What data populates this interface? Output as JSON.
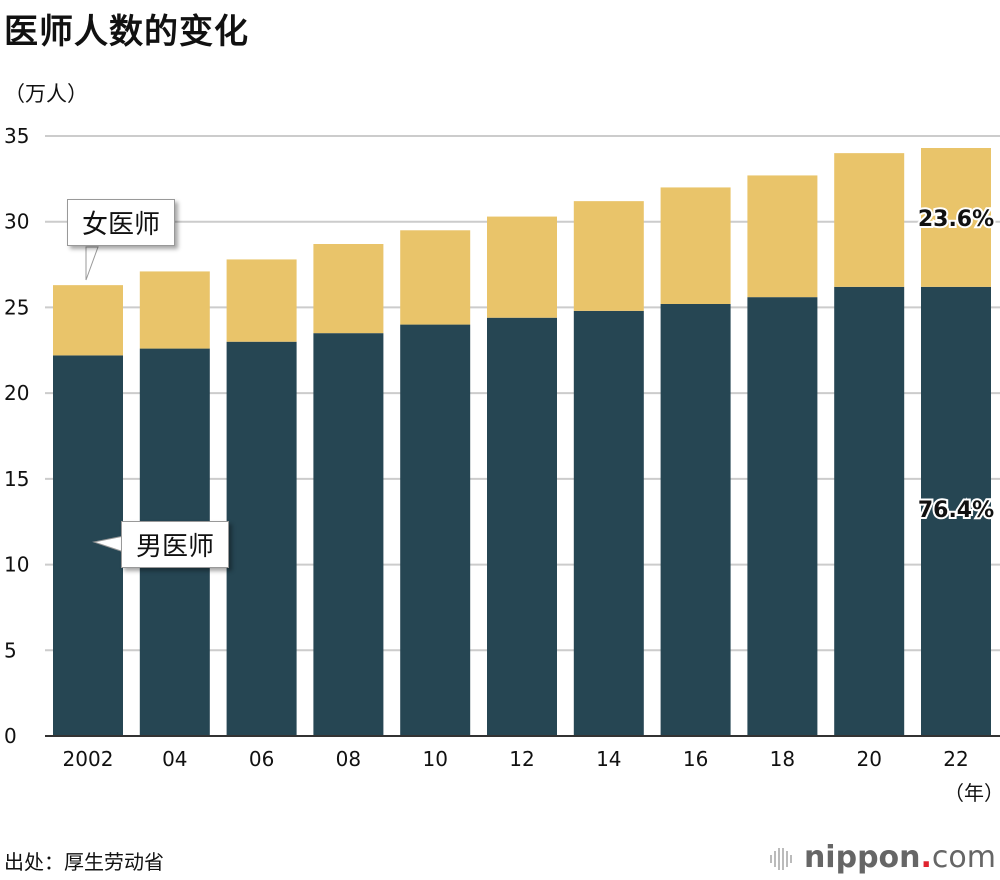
{
  "title": "医师人数的变化",
  "unit_label": "（万人）",
  "source": "出处：厚生劳动省",
  "logo": {
    "text_main": "nippon",
    "text_dot": ".",
    "text_tail": "com"
  },
  "colors": {
    "male": "#264653",
    "female": "#e9c46a",
    "grid": "#cccccc"
  },
  "annotations": {
    "female_label": "女医师",
    "male_label": "男医师",
    "female_pct": "23.6%",
    "male_pct": "76.4%"
  },
  "chart_data": {
    "type": "bar",
    "stacked": true,
    "categories": [
      "2002",
      "04",
      "06",
      "08",
      "10",
      "12",
      "14",
      "16",
      "18",
      "20",
      "22"
    ],
    "x_unit_label": "（年）",
    "series": [
      {
        "name": "男医师",
        "values": [
          22.2,
          22.6,
          23.0,
          23.5,
          24.0,
          24.4,
          24.8,
          25.2,
          25.6,
          26.2,
          26.2
        ]
      },
      {
        "name": "女医师",
        "values": [
          4.1,
          4.5,
          4.8,
          5.2,
          5.5,
          5.9,
          6.4,
          6.8,
          7.1,
          7.8,
          8.1
        ]
      }
    ],
    "ylim": [
      0,
      35
    ],
    "yticks": [
      0,
      5,
      10,
      15,
      20,
      25,
      30,
      35
    ],
    "grid": true
  }
}
